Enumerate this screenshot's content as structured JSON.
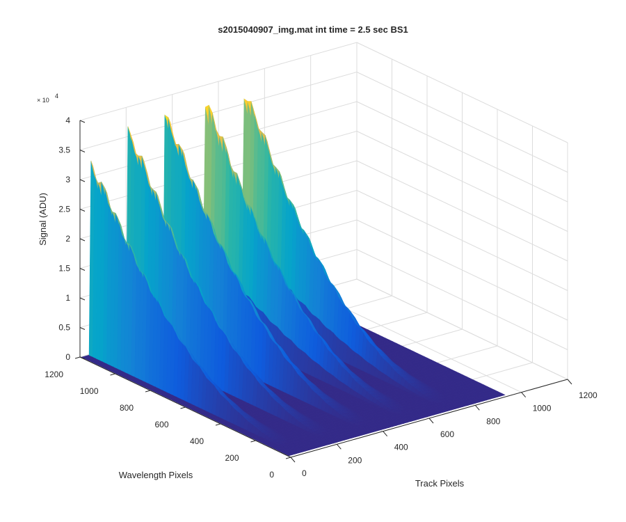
{
  "chart_data": {
    "type": "surface",
    "title": "s2015040907_img.mat int time = 2.5 sec   BS1",
    "xlabel": "Track Pixels",
    "ylabel": "Wavelength Pixels",
    "zlabel": "Signal (ADU)",
    "z_exponent_base": "× 10",
    "z_exponent_power": "4",
    "xlim": [
      0,
      1200
    ],
    "ylim": [
      0,
      1200
    ],
    "zlim": [
      0,
      40000
    ],
    "x_ticks": [
      "0",
      "200",
      "400",
      "600",
      "800",
      "1000",
      "1200"
    ],
    "y_ticks": [
      "0",
      "200",
      "400",
      "600",
      "800",
      "1000",
      "1200"
    ],
    "z_ticks": [
      "0",
      "0.5",
      "1",
      "1.5",
      "2",
      "2.5",
      "3",
      "3.5",
      "4"
    ],
    "grid": true,
    "colormap": [
      "#352a87",
      "#0f5cdd",
      "#1481d6",
      "#06a4ca",
      "#2eb7a4",
      "#87bf77",
      "#d1bb59",
      "#fec832",
      "#f9fb0e"
    ],
    "series": [
      {
        "track_center": 40,
        "peak": 33500
      },
      {
        "track_center": 200,
        "peak": 37500
      },
      {
        "track_center": 360,
        "peak": 38500
      },
      {
        "track_center": 530,
        "peak": 39500
      },
      {
        "track_center": 700,
        "peak": 39000
      }
    ]
  }
}
